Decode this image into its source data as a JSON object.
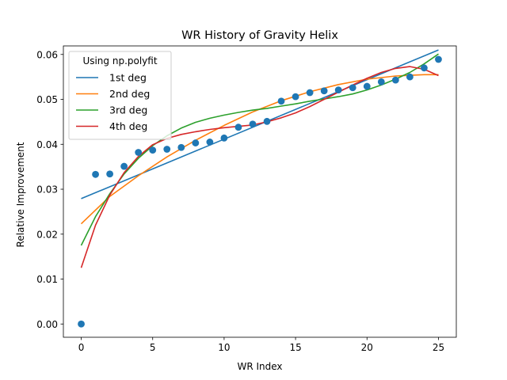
{
  "chart_data": {
    "type": "scatter",
    "title": "WR History of Gravity Helix",
    "xlabel": "WR Index",
    "ylabel": "Relative Improvement",
    "xlim": [
      -1.25,
      26.25
    ],
    "ylim": [
      -0.00295,
      0.0619
    ],
    "xticks": [
      0,
      5,
      10,
      15,
      20,
      25
    ],
    "xtick_labels": [
      "0",
      "5",
      "10",
      "15",
      "20",
      "25"
    ],
    "yticks": [
      0,
      0.01,
      0.02,
      0.03,
      0.04,
      0.05,
      0.06
    ],
    "ytick_labels": [
      "0.00",
      "0.01",
      "0.02",
      "0.03",
      "0.04",
      "0.05",
      "0.06"
    ],
    "grid": false,
    "legend": {
      "title": "Using np.polyfit",
      "placement": "top-left",
      "entries": [
        "1st deg",
        "2nd deg",
        "3rd deg",
        "4th deg"
      ]
    },
    "points": {
      "color": "#1f77b4",
      "x": [
        0,
        1,
        2,
        3,
        4,
        5,
        6,
        7,
        8,
        9,
        10,
        11,
        12,
        13,
        14,
        15,
        16,
        17,
        18,
        19,
        20,
        21,
        22,
        23,
        24,
        25
      ],
      "y": [
        0.0,
        0.0333,
        0.0334,
        0.0351,
        0.0382,
        0.0387,
        0.0389,
        0.0393,
        0.0403,
        0.0405,
        0.0414,
        0.0438,
        0.0445,
        0.0451,
        0.0496,
        0.0506,
        0.0515,
        0.0519,
        0.0521,
        0.0526,
        0.0529,
        0.0539,
        0.0543,
        0.055,
        0.057,
        0.0589
      ]
    },
    "series": [
      {
        "name": "1st deg",
        "color": "#1f77b4",
        "x": [
          0,
          25
        ],
        "y": [
          0.0279,
          0.061
        ]
      },
      {
        "name": "2nd deg",
        "color": "#ff7f0e",
        "x": [
          0,
          2,
          4,
          6,
          8,
          10,
          12,
          14,
          16,
          18,
          20,
          22,
          24,
          25
        ],
        "y": [
          0.0223,
          0.0284,
          0.033,
          0.0372,
          0.0409,
          0.0442,
          0.0472,
          0.0497,
          0.0517,
          0.0533,
          0.0545,
          0.0552,
          0.0555,
          0.0555
        ]
      },
      {
        "name": "3rd deg",
        "color": "#2ca02c",
        "x": [
          0,
          1,
          2,
          3,
          4,
          5,
          6,
          7,
          8,
          9,
          10,
          11,
          12,
          13,
          14,
          15,
          16,
          17,
          18,
          19,
          20,
          21,
          22,
          23,
          24,
          25
        ],
        "y": [
          0.0175,
          0.0239,
          0.029,
          0.0334,
          0.0369,
          0.0397,
          0.0419,
          0.0436,
          0.0449,
          0.0458,
          0.0465,
          0.0471,
          0.0476,
          0.048,
          0.0485,
          0.049,
          0.0496,
          0.0501,
          0.0506,
          0.0512,
          0.0521,
          0.0532,
          0.0545,
          0.056,
          0.0579,
          0.0601
        ]
      },
      {
        "name": "4th deg",
        "color": "#d62728",
        "x": [
          0,
          1,
          2,
          3,
          4,
          5,
          6,
          7,
          8,
          9,
          10,
          11,
          12,
          13,
          14,
          15,
          16,
          17,
          18,
          19,
          20,
          21,
          22,
          23,
          24,
          25
        ],
        "y": [
          0.0125,
          0.022,
          0.0287,
          0.0337,
          0.0373,
          0.0399,
          0.0413,
          0.0422,
          0.0428,
          0.0433,
          0.0437,
          0.044,
          0.0443,
          0.045,
          0.0459,
          0.047,
          0.0484,
          0.05,
          0.0516,
          0.0532,
          0.0547,
          0.056,
          0.0569,
          0.0573,
          0.0567,
          0.0553
        ]
      }
    ]
  }
}
